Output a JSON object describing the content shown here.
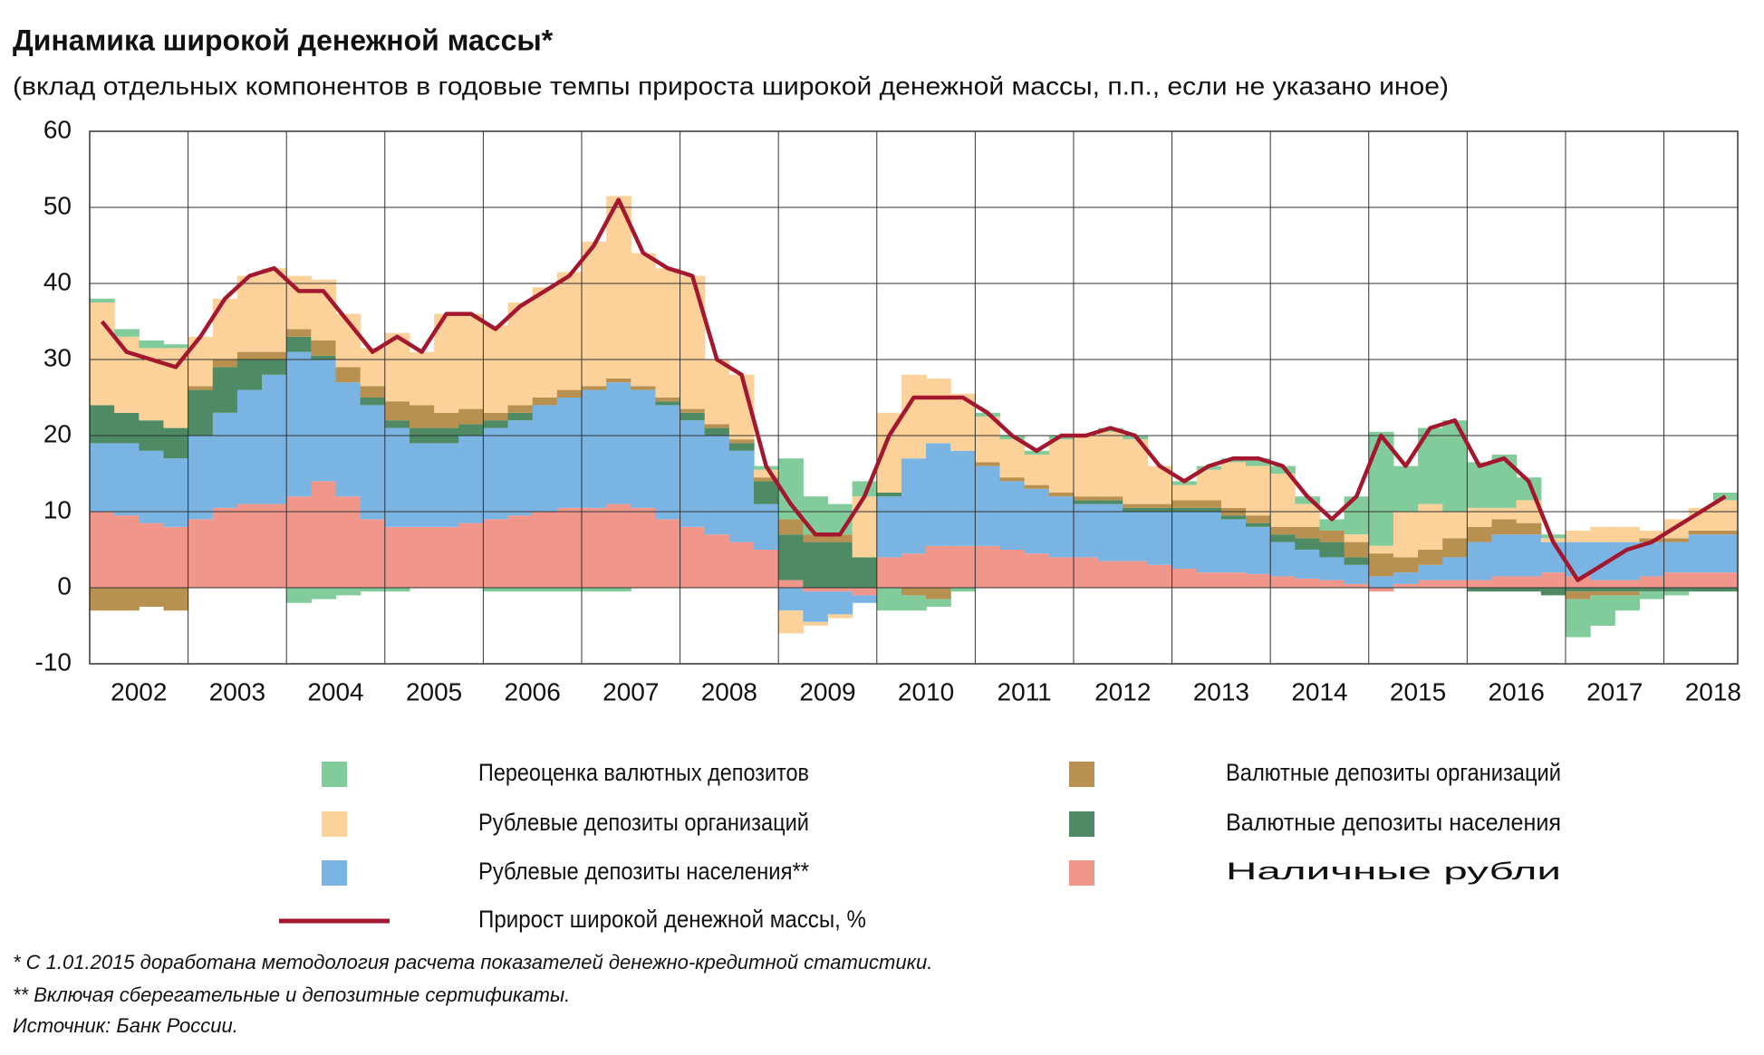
{
  "chart_data": {
    "type": "stacked-area",
    "title": "Динамика широкой денежной массы*",
    "subtitle": "(вклад отдельных компонентов в годовые темпы прироста широкой денежной массы, п.п., если не указано иное)",
    "categories": [
      "2002",
      null,
      null,
      null,
      "2003",
      null,
      null,
      null,
      "2004",
      null,
      null,
      null,
      "2005",
      null,
      null,
      null,
      "2006",
      null,
      null,
      null,
      "2007",
      null,
      null,
      null,
      "2008",
      null,
      null,
      null,
      "2009",
      null,
      null,
      null,
      "2010",
      null,
      null,
      null,
      "2011",
      null,
      null,
      null,
      "2012",
      null,
      null,
      null,
      "2013",
      null,
      null,
      null,
      "2014",
      null,
      null,
      null,
      "2015",
      null,
      null,
      null,
      "2016",
      null,
      null,
      null,
      "2017",
      null,
      null,
      null,
      "2018",
      null,
      null
    ],
    "ylim": [
      -10,
      60
    ],
    "yticks": [
      -10,
      0,
      10,
      20,
      30,
      40,
      50,
      60
    ],
    "grid": true,
    "series": [
      {
        "name": "Наличные рубли",
        "color": "#f0968a",
        "values": [
          10,
          9.5,
          8.5,
          8,
          9,
          10.5,
          11,
          11,
          12,
          14,
          12,
          9,
          8,
          8,
          8,
          8.5,
          9,
          9.5,
          10,
          10.5,
          10.5,
          11,
          10.5,
          9,
          8,
          7,
          6,
          5,
          1,
          -0.5,
          -0.5,
          -1,
          4,
          4.5,
          5.5,
          5.5,
          5.5,
          5,
          4.5,
          4,
          4,
          3.5,
          3.5,
          3,
          2.5,
          2,
          2,
          1.8,
          1.5,
          1.2,
          1,
          0.5,
          -0.5,
          0.5,
          1,
          1,
          1,
          1.5,
          1.5,
          2,
          1.5,
          1,
          1,
          1.5,
          2,
          2,
          2
        ]
      },
      {
        "name": "Рублевые депозиты населения**",
        "color": "#7ab4e3",
        "values": [
          9,
          9.5,
          9.5,
          9,
          11,
          12.5,
          15,
          17,
          19,
          16,
          15,
          15,
          13,
          11,
          11,
          11.5,
          12,
          12.5,
          14,
          14.5,
          15.5,
          16,
          15.5,
          15,
          14,
          13,
          12,
          6,
          -3,
          -4,
          -3,
          -1,
          8,
          12.5,
          13.5,
          12.5,
          10.5,
          9,
          8.5,
          8,
          7,
          7.5,
          6.5,
          7,
          7.5,
          8,
          7,
          6.2,
          4.5,
          3.8,
          3,
          2.5,
          1.5,
          1.5,
          2,
          3,
          5,
          5.5,
          5.5,
          4,
          4.5,
          5,
          5,
          4.5,
          4,
          5,
          5
        ]
      },
      {
        "name": "Валютные депозиты населения",
        "color": "#4e8a64",
        "values": [
          5,
          4,
          4,
          4,
          6,
          6,
          4,
          2,
          2,
          0.5,
          0,
          1,
          1,
          2,
          2,
          1.5,
          1,
          1,
          0,
          0,
          0,
          0,
          0,
          0.5,
          1,
          1,
          1,
          3,
          6,
          6,
          6,
          4,
          0.5,
          0,
          0,
          0,
          0,
          0,
          0,
          0,
          0.5,
          0.5,
          0.5,
          0.5,
          0.5,
          0.5,
          0.5,
          0.5,
          1,
          1.5,
          2,
          1,
          0,
          0,
          0,
          0,
          -0.5,
          -0.5,
          -0.5,
          -1,
          -0.5,
          -0.5,
          -0.5,
          -0.5,
          -0.5,
          -0.5,
          -0.5
        ]
      },
      {
        "name": "Валютные депозиты организаций",
        "color": "#b8904f",
        "values": [
          -3,
          -3,
          -2.5,
          -3,
          0.5,
          1,
          1,
          1,
          1,
          2,
          2,
          1.5,
          2.5,
          3,
          2,
          2,
          1,
          1,
          1,
          1,
          0.5,
          0.5,
          0.5,
          0.5,
          0.5,
          0.5,
          0.5,
          0.5,
          2,
          1,
          1,
          0,
          0,
          -1,
          -1.5,
          0,
          0.5,
          0.5,
          0.5,
          0.5,
          0.5,
          0.5,
          0.5,
          0.5,
          1,
          1,
          1,
          1,
          1,
          1.5,
          1.5,
          2,
          3,
          2,
          2,
          2.5,
          2,
          2,
          1.5,
          0,
          -1,
          -0.5,
          -0.5,
          0.5,
          0.5,
          0.5,
          0.5
        ]
      },
      {
        "name": "Рублевые депозиты организаций",
        "color": "#fdd29a",
        "values": [
          13.5,
          10,
          9.5,
          10.5,
          6.5,
          8,
          10,
          11,
          7,
          8,
          7,
          5,
          9,
          7,
          13,
          12.5,
          11.5,
          13.5,
          14.5,
          15.5,
          19,
          24,
          17.5,
          17,
          17.5,
          8.5,
          8.5,
          1,
          -3,
          -0.5,
          -0.5,
          8,
          10.5,
          11,
          8.5,
          7.5,
          6,
          5,
          4,
          7,
          8,
          8.5,
          8.5,
          5,
          2,
          4,
          6,
          6.5,
          7,
          3,
          0,
          1,
          1,
          6,
          6,
          3.5,
          2.5,
          1.5,
          3,
          0.5,
          1.5,
          2,
          2,
          1,
          2.5,
          3,
          4
        ]
      },
      {
        "name": "Переоценка валютных депозитов",
        "color": "#82cc9c",
        "values": [
          0.5,
          1,
          1,
          0.5,
          0,
          0,
          0,
          0,
          -2,
          -1.5,
          -1,
          -0.5,
          -0.5,
          0,
          0,
          0,
          -0.5,
          -0.5,
          -0.5,
          -0.5,
          -0.5,
          -0.5,
          0,
          0,
          0,
          0,
          0,
          0.5,
          8,
          5,
          4,
          2,
          -3,
          -2,
          -1,
          -0.5,
          0.5,
          0.5,
          0.5,
          0.5,
          0,
          0.5,
          0.5,
          0,
          0.5,
          0.5,
          0.5,
          1,
          1,
          1,
          1.5,
          5,
          15,
          6,
          10,
          12,
          6,
          7,
          3,
          0.5,
          -5,
          -4,
          -2,
          -1,
          -0.5,
          0,
          1
        ]
      }
    ],
    "line": {
      "name": "Прирост широкой денежной массы, %",
      "color": "#a3182f",
      "values": [
        35,
        31,
        30,
        29,
        33,
        38,
        41,
        42,
        39,
        39,
        35,
        31,
        33,
        31,
        36,
        36,
        34,
        37,
        39,
        41,
        45,
        51,
        44,
        42,
        41,
        30,
        28,
        16,
        11,
        7,
        7,
        12,
        20,
        25,
        25,
        25,
        23,
        20,
        18,
        20,
        20,
        21,
        20,
        16,
        14,
        16,
        17,
        17,
        16,
        12,
        9,
        12,
        20,
        16,
        21,
        22,
        16,
        17,
        14,
        6,
        1,
        3,
        5,
        6,
        8,
        10,
        12
      ]
    },
    "notes": [
      "* С 1.01.2015 доработана методология расчета показателей денежно-кредитной статистики.",
      "** Включая сберегательные и депозитные сертификаты.",
      "Источник: Банк России."
    ]
  }
}
